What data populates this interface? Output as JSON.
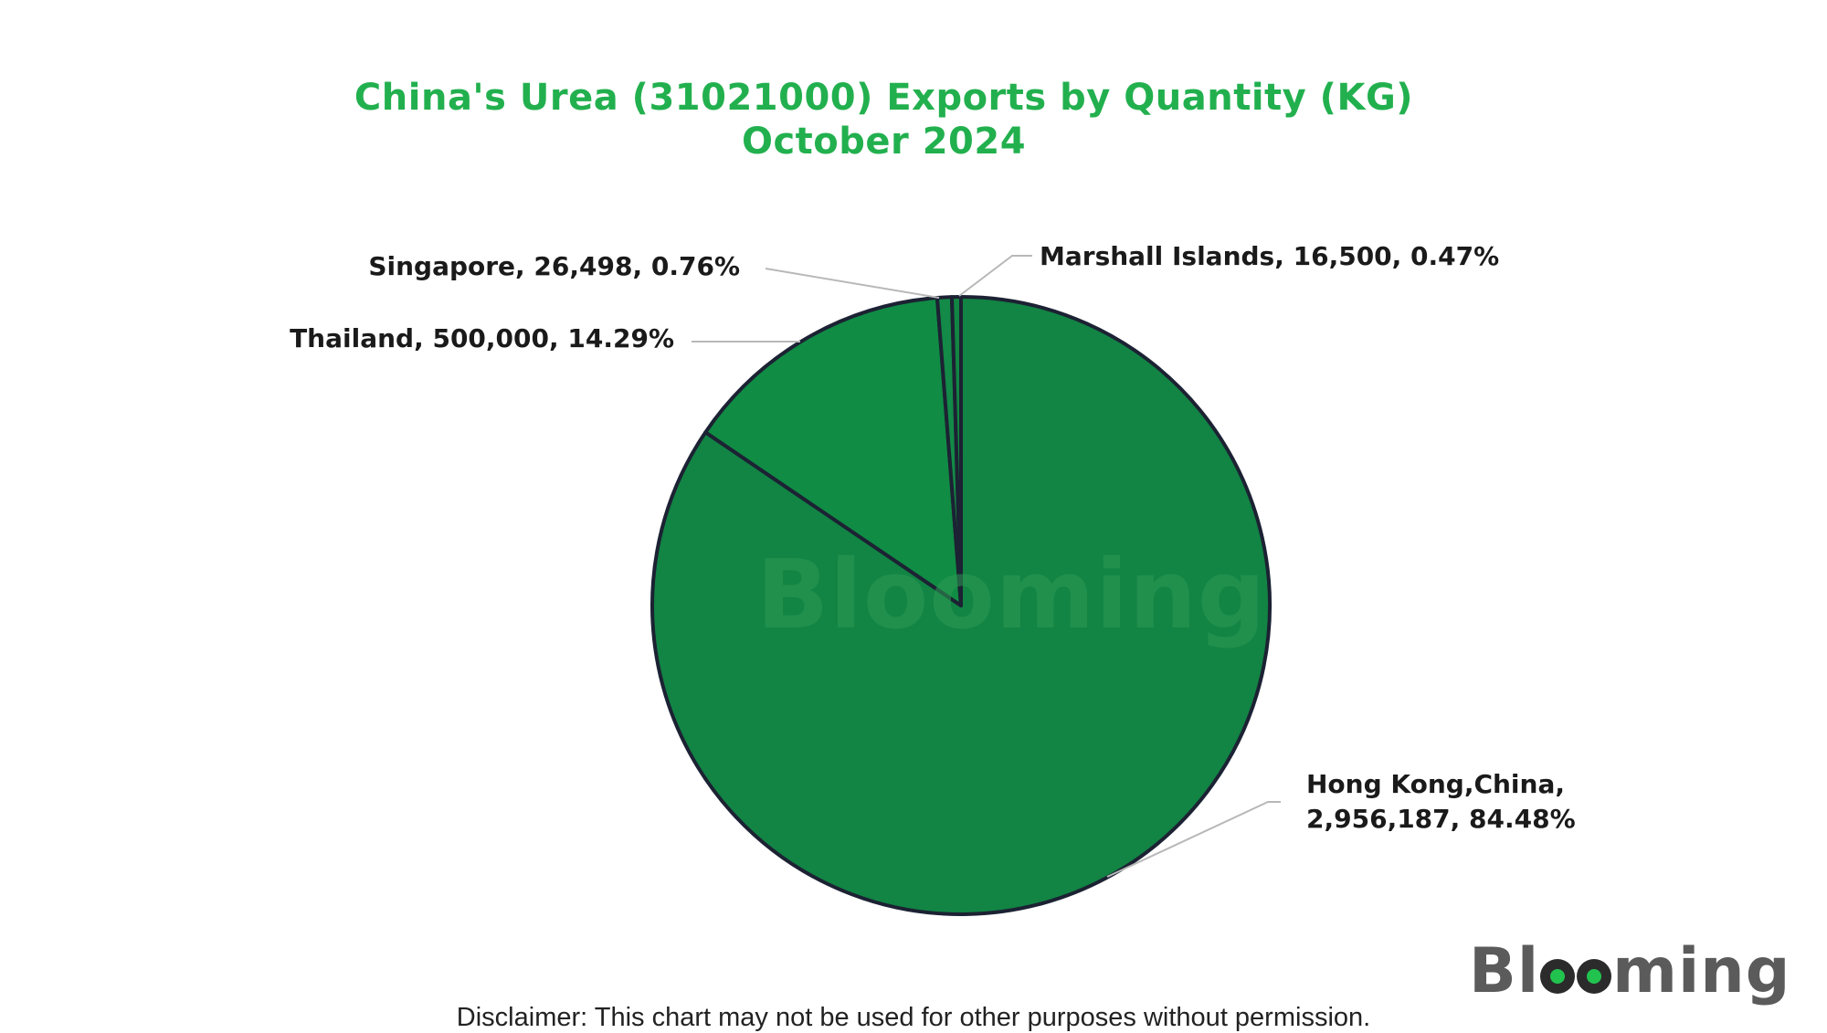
{
  "chart_data": {
    "type": "pie",
    "title": "China's Urea (31021000) Exports by Quantity (KG)",
    "subtitle": "October 2024",
    "slices": [
      {
        "label": "Hong Kong,China",
        "value": 2956187,
        "percent": "84.48%",
        "color": "#128444"
      },
      {
        "label": "Thailand",
        "value": 500000,
        "percent": "14.29%",
        "color": "#108c44"
      },
      {
        "label": "Singapore",
        "value": 26498,
        "percent": "0.76%",
        "color": "#138a47"
      },
      {
        "label": "Marshall Islands",
        "value": 16500,
        "percent": "0.47%",
        "color": "#118642"
      }
    ],
    "labels": {
      "singapore": "Singapore, 26,498, 0.76%",
      "thailand": "Thailand, 500,000, 14.29%",
      "marshall": "Marshall Islands, 16,500, 0.47%",
      "hongkong_line1": "Hong Kong,China,",
      "hongkong_line2": "2,956,187, 84.48%"
    },
    "legend": "none"
  },
  "watermark": "Blooming",
  "logo": {
    "prefix": "Bl",
    "suffix": "ming"
  },
  "disclaimer": "Disclaimer: This chart may not be used for other purposes without permission."
}
